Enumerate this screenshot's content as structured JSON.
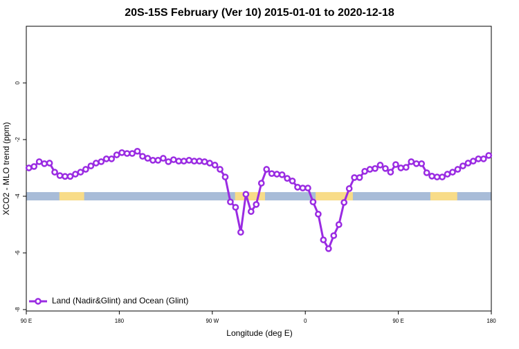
{
  "chart_data": {
    "type": "line",
    "title": "20S-15S February (Ver 10)   2015-01-01 to 2020-12-18",
    "xlabel": "Longitude (deg E)",
    "ylabel": "XCO2 - MLO trend (ppm)",
    "xlim": [
      90,
      540
    ],
    "ylim": [
      -8.05,
      2
    ],
    "xticks": [
      {
        "value": 90,
        "label": "90 E"
      },
      180,
      {
        "value": 270,
        "label": "90 W"
      },
      {
        "value": 360,
        "label": "0"
      },
      {
        "value": 450,
        "label": "90 E"
      },
      {
        "value": 540,
        "label": "180"
      }
    ],
    "yticks": [
      0,
      -2,
      -4,
      -6,
      -8
    ],
    "legend": "bottom-left",
    "band": {
      "y": -4,
      "color": "#a8bcd8",
      "highlight_color": "#f8dc88",
      "highlight_spans": [
        [
          122,
          146
        ],
        [
          292,
          321
        ],
        [
          370,
          406
        ],
        [
          481,
          507
        ]
      ]
    },
    "series": [
      {
        "name": "Land (Nadir&Glint) and Ocean (Glint)",
        "color": "#9a2be2",
        "x": [
          92.5,
          97.5,
          102.5,
          107.5,
          112.5,
          117.5,
          122.5,
          127.5,
          132.5,
          137.5,
          142.5,
          147.5,
          152.5,
          157.5,
          162.5,
          167.5,
          172.5,
          177.5,
          182.5,
          187.5,
          192.5,
          197.5,
          202.5,
          207.5,
          212.5,
          217.5,
          222.5,
          227.5,
          232.5,
          237.5,
          242.5,
          247.5,
          252.5,
          257.5,
          262.5,
          267.5,
          272.5,
          277.5,
          282.5,
          287.5,
          292.5,
          297.5,
          302.5,
          307.5,
          312.5,
          317.5,
          322.5,
          327.5,
          332.5,
          337.5,
          342.5,
          347.5,
          352.5,
          357.5,
          362.5,
          367.5,
          372.5,
          377.5,
          382.5,
          387.5,
          392.5,
          397.5,
          402.5,
          407.5,
          412.5,
          417.5,
          422.5,
          427.5,
          432.5,
          437.5,
          442.5,
          447.5,
          452.5,
          457.5,
          462.5,
          467.5,
          472.5,
          477.5,
          482.5,
          487.5,
          492.5,
          497.5,
          502.5,
          507.5,
          512.5,
          517.5,
          522.5,
          527.5,
          532.5,
          537.5
        ],
        "values": [
          -3.0,
          -2.95,
          -2.78,
          -2.85,
          -2.83,
          -3.15,
          -3.27,
          -3.3,
          -3.3,
          -3.22,
          -3.15,
          -3.05,
          -2.93,
          -2.83,
          -2.78,
          -2.68,
          -2.68,
          -2.54,
          -2.46,
          -2.49,
          -2.49,
          -2.41,
          -2.59,
          -2.66,
          -2.73,
          -2.73,
          -2.66,
          -2.78,
          -2.71,
          -2.76,
          -2.76,
          -2.73,
          -2.76,
          -2.76,
          -2.78,
          -2.83,
          -2.9,
          -3.05,
          -3.32,
          -4.2,
          -4.39,
          -5.27,
          -3.93,
          -4.54,
          -4.29,
          -3.54,
          -3.05,
          -3.2,
          -3.22,
          -3.24,
          -3.37,
          -3.46,
          -3.68,
          -3.71,
          -3.71,
          -4.2,
          -4.63,
          -5.54,
          -5.85,
          -5.39,
          -5.0,
          -4.22,
          -3.73,
          -3.34,
          -3.34,
          -3.12,
          -3.05,
          -3.02,
          -2.9,
          -3.02,
          -3.15,
          -2.88,
          -3.0,
          -2.98,
          -2.78,
          -2.85,
          -2.85,
          -3.17,
          -3.29,
          -3.32,
          -3.32,
          -3.22,
          -3.15,
          -3.05,
          -2.93,
          -2.83,
          -2.76,
          -2.68,
          -2.68,
          -2.56
        ]
      }
    ]
  }
}
